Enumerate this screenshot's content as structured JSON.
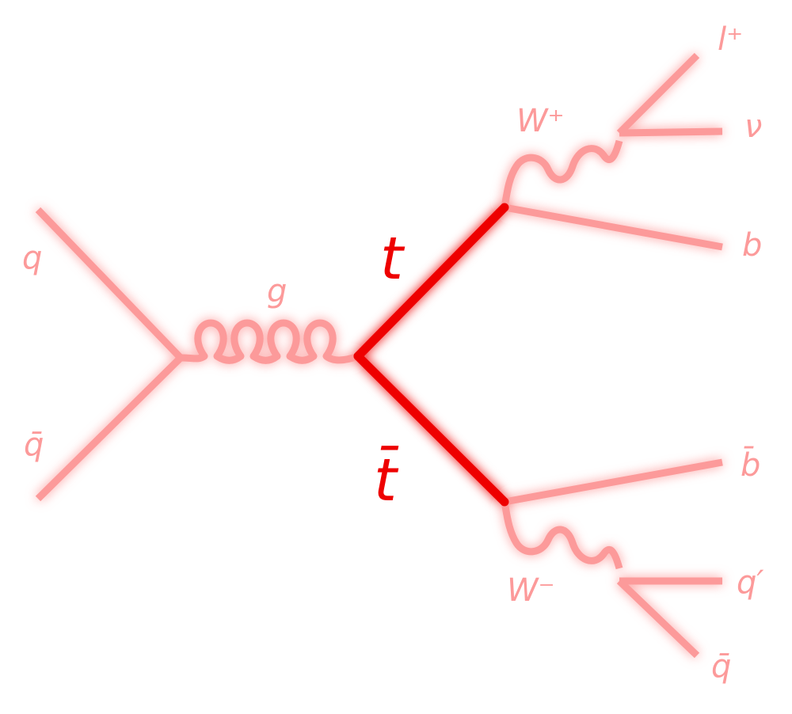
{
  "particles": {
    "quark": "q",
    "antiquark": "q̄",
    "gluon": "g",
    "top": "t",
    "antitop": "t̄",
    "w_plus": "W⁺",
    "w_minus": "W⁻",
    "lepton": "l⁺",
    "neutrino": "ν",
    "bottom": "b",
    "antibottom": "b̄",
    "quark_prime": "q′",
    "antiquark_out": "q̄"
  },
  "colors": {
    "faint_line": "#fc9a9a",
    "top_line": "#ee0000",
    "glow": "#ff9d9d"
  }
}
